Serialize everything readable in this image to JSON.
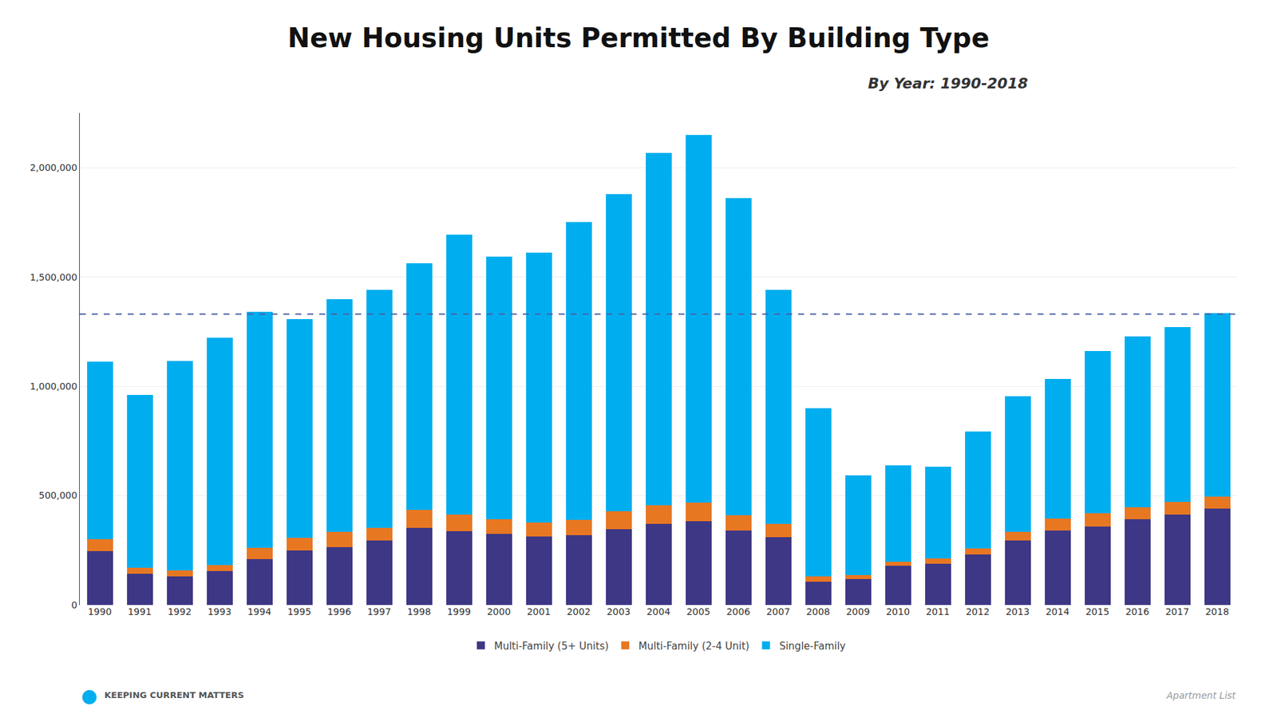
{
  "chart_data": {
    "type": "bar",
    "stacked": true,
    "title": "New Housing Units Permitted By Building Type",
    "subtitle": "By Year: 1990-2018",
    "categories": [
      "1990",
      "1991",
      "1992",
      "1993",
      "1994",
      "1995",
      "1996",
      "1997",
      "1998",
      "1999",
      "2000",
      "2001",
      "2002",
      "2003",
      "2004",
      "2005",
      "2006",
      "2007",
      "2008",
      "2009",
      "2010",
      "2011",
      "2012",
      "2013",
      "2014",
      "2015",
      "2016",
      "2017",
      "2018"
    ],
    "series": [
      {
        "name": "Multi-Family (5+ Units)",
        "color": "#3D3785",
        "values": [
          245000,
          142000,
          130000,
          155000,
          210000,
          248000,
          265000,
          294000,
          352000,
          338000,
          325000,
          314000,
          320000,
          348000,
          372000,
          384000,
          342000,
          310000,
          105000,
          120000,
          178000,
          190000,
          230000,
          295000,
          340000,
          360000,
          393000,
          415000,
          440000
        ]
      },
      {
        "name": "Multi-Family (2-4 Unit)",
        "color": "#E87722",
        "values": [
          57000,
          28000,
          27000,
          28000,
          50000,
          60000,
          68000,
          58000,
          82000,
          75000,
          68000,
          62000,
          70000,
          80000,
          85000,
          85000,
          70000,
          60000,
          25000,
          18000,
          20000,
          22000,
          28000,
          40000,
          55000,
          60000,
          55000,
          55000,
          55000
        ]
      },
      {
        "name": "Single-Family",
        "color": "#00AEEF",
        "values": [
          810000,
          790000,
          960000,
          1040000,
          1080000,
          1000000,
          1065000,
          1090000,
          1130000,
          1280000,
          1200000,
          1235000,
          1360000,
          1450000,
          1610000,
          1680000,
          1450000,
          1070000,
          770000,
          455000,
          440000,
          420000,
          535000,
          620000,
          640000,
          740000,
          780000,
          800000,
          840000
        ]
      }
    ],
    "reference_line": {
      "y": 1330000,
      "color": "#4B61A8",
      "line_style": "dashed"
    },
    "ylim": [
      0,
      2250000
    ],
    "yticks": [
      0,
      {
        "value": 500000,
        "label": "500,000"
      },
      {
        "value": 1000000,
        "label": "1,000,000"
      },
      {
        "value": 1500000,
        "label": "1,500,000"
      },
      {
        "value": 2000000,
        "label": "2,000,000"
      }
    ],
    "grid": true,
    "legend": "bottom",
    "source": "Apartment List",
    "footer_mark": {
      "text": "●",
      "color": "#00AEEF"
    },
    "footer_text": "KEEPING CURRENT MATTERS"
  }
}
